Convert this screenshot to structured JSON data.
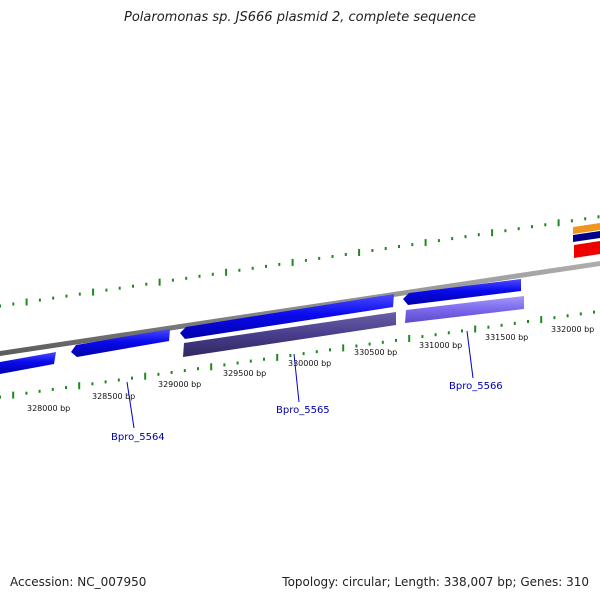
{
  "title": "Polaromonas sp. JS666 plasmid 2, complete sequence",
  "footer": {
    "accession": "Accession: NC_007950",
    "summary": "Topology: circular; Length: 338,007 bp; Genes: 310"
  },
  "colors": {
    "forward_gene": "#0a0aee",
    "forward_gene_dark": "#0000a8",
    "cds_reverse": "#483d8b",
    "cds_forward": "#7b68ee",
    "backbone": "#8a8a8a",
    "tick": "#1e8a1e",
    "label_line": "#0000cc",
    "gene_label": "#0000aa",
    "feature_orange": "#f0961e",
    "feature_navy": "#00008b",
    "feature_red": "#ee0000"
  },
  "ruler_labels": [
    "328000 bp",
    "328500 bp",
    "329000 bp",
    "329500 bp",
    "330000 bp",
    "330500 bp",
    "331000 bp",
    "331500 bp",
    "332000 bp"
  ],
  "genes": [
    {
      "id": "Bpro_5564",
      "label": "Bpro_5564"
    },
    {
      "id": "Bpro_5565",
      "label": "Bpro_5565"
    },
    {
      "id": "Bpro_5566",
      "label": "Bpro_5566"
    }
  ]
}
